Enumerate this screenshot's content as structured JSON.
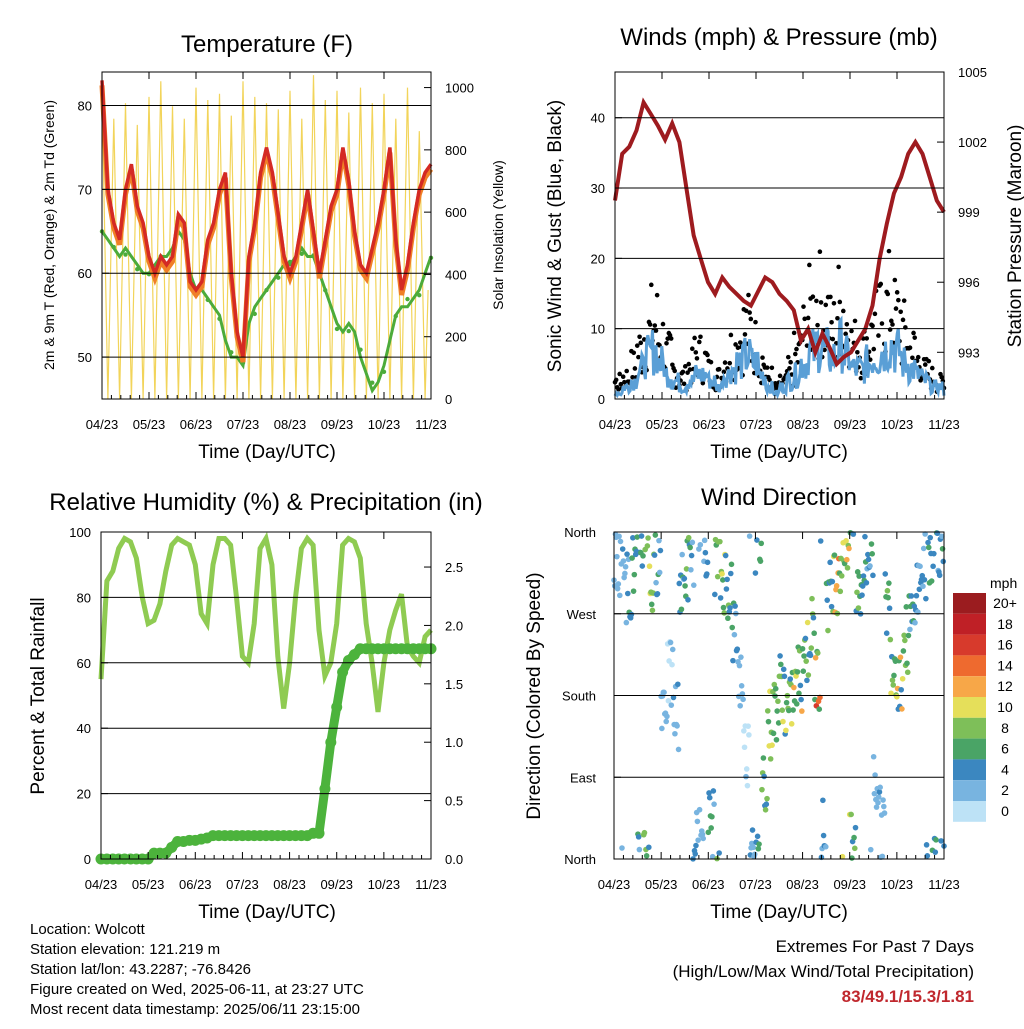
{
  "x_ticks": [
    "04/23",
    "05/23",
    "06/23",
    "07/23",
    "08/23",
    "09/23",
    "10/23",
    "11/23"
  ],
  "x_label": "Time (Day/UTC)",
  "colors": {
    "temp_red": "#d42a24",
    "temp_orange": "#f07f27",
    "dewpoint_green": "#4cab3a",
    "solar_yellow": "#f2d45a",
    "wind_black": "#000000",
    "wind_blue": "#5a9fd6",
    "pressure_maroon": "#9e1b1f",
    "rh_green": "#8fcb52",
    "rain_green": "#4cb33c",
    "extremes_red": "#c0282e"
  },
  "chart_data": [
    {
      "type": "line",
      "title": "Temperature (F)",
      "ylabel": "2m & 9m T (Red, Orange) & 2m Td (Green)",
      "y2label": "Solar Insolation (Yellow)",
      "ylim": [
        45,
        84
      ],
      "y2lim": [
        0,
        1050
      ],
      "y_ticks": [
        "50",
        "60",
        "70",
        "80"
      ],
      "y2_ticks": [
        "0",
        "200",
        "400",
        "600",
        "800",
        "1000"
      ],
      "grid": true,
      "series": [
        {
          "key": "t2m",
          "values": [
            83,
            70,
            66,
            64,
            70,
            73,
            68,
            66,
            62,
            60,
            62,
            61,
            62,
            67,
            66,
            59,
            58,
            59,
            64,
            66,
            70,
            72,
            60,
            53,
            50,
            62,
            66,
            72,
            75,
            72,
            67,
            62,
            60,
            62,
            66,
            70,
            65,
            60,
            64,
            68,
            70,
            75,
            71,
            65,
            61,
            60,
            63,
            66,
            70,
            75,
            64,
            58,
            61,
            66,
            70,
            72,
            73
          ]
        },
        {
          "key": "td2m",
          "values": [
            65,
            64,
            63,
            62,
            63,
            62,
            61,
            60,
            60,
            61,
            62,
            62,
            63,
            65,
            64,
            60,
            58,
            58,
            57,
            56,
            55,
            52,
            50,
            50,
            49,
            54,
            56,
            57,
            58,
            59,
            60,
            61,
            61,
            62,
            63,
            62,
            62,
            60,
            58,
            56,
            54,
            53,
            54,
            53,
            50,
            48,
            46,
            47,
            49,
            52,
            55,
            56,
            56,
            57,
            58,
            60,
            62
          ]
        },
        {
          "key": "solar",
          "values": [
            1000,
            0,
            900,
            0,
            950,
            0,
            880,
            0,
            970,
            0,
            1020,
            0,
            940,
            0,
            900,
            0,
            1000,
            0,
            960,
            0,
            980,
            0,
            910,
            0,
            1020,
            0,
            970,
            0,
            950,
            0,
            930,
            0,
            990,
            0,
            900,
            0,
            1040,
            0,
            960,
            0,
            990,
            0,
            920,
            0,
            1000,
            0,
            950,
            0,
            980,
            0,
            900,
            0,
            1000,
            0,
            860,
            0,
            700
          ]
        }
      ]
    },
    {
      "type": "line",
      "title": "Winds (mph) & Pressure (mb)",
      "ylabel": "Sonic Wind & Gust (Blue, Black)",
      "y2label": "Station Pressure (Maroon)",
      "ylim": [
        0,
        46.5
      ],
      "y2lim": [
        991.0,
        1005.0
      ],
      "y_ticks": [
        "0",
        "10",
        "20",
        "30",
        "40"
      ],
      "y2_ticks": [
        "993",
        "996",
        "999",
        "1002",
        "1005"
      ],
      "grid": true,
      "series": [
        {
          "key": "pressure",
          "values": [
            999.5,
            1001.5,
            1001.8,
            1002.5,
            1003.7,
            1003.2,
            1002.7,
            1002.1,
            1002.8,
            1002.0,
            1000.0,
            998.0,
            997.0,
            996.0,
            995.5,
            996.2,
            995.8,
            995.5,
            995.2,
            995.0,
            995.6,
            996.2,
            996.0,
            995.5,
            995.2,
            994.8,
            993.5,
            994.0,
            993.0,
            993.8,
            993.2,
            992.5,
            992.8,
            993.0,
            993.5,
            994.0,
            995.0,
            997.0,
            998.5,
            999.8,
            1000.5,
            1001.5,
            1002.0,
            1001.5,
            1000.5,
            999.5,
            999.0
          ]
        },
        {
          "key": "gust",
          "values": [
            3,
            4,
            6,
            9,
            12,
            14,
            11,
            8,
            5,
            4,
            6,
            8,
            7,
            5,
            4,
            7,
            9,
            11,
            13,
            10,
            7,
            4,
            2,
            3,
            5,
            8,
            12,
            16,
            18,
            15,
            13,
            17,
            14,
            10,
            9,
            11,
            14,
            16,
            18,
            15,
            12,
            9,
            7,
            5,
            4,
            3,
            2
          ]
        },
        {
          "key": "wind",
          "values": [
            1,
            2,
            3,
            5,
            7,
            8,
            6,
            4,
            3,
            2,
            3,
            4,
            4,
            3,
            2,
            4,
            5,
            6,
            7,
            6,
            4,
            2,
            1,
            2,
            3,
            4,
            6,
            8,
            9,
            8,
            7,
            9,
            7,
            5,
            5,
            6,
            7,
            8,
            9,
            8,
            6,
            5,
            4,
            3,
            2,
            2,
            1
          ]
        }
      ]
    },
    {
      "type": "line",
      "title": "Relative Humidity (%) & Precipitation (in)",
      "ylabel": "Percent & Total Rainfall",
      "ylim": [
        0,
        100
      ],
      "y2lim": [
        0,
        2.8
      ],
      "y_ticks": [
        "0",
        "20",
        "40",
        "60",
        "80",
        "100"
      ],
      "y2_ticks": [
        "0.0",
        "0.5",
        "1.0",
        "1.5",
        "2.0",
        "2.5"
      ],
      "grid": true,
      "series": [
        {
          "key": "rh",
          "values": [
            55,
            85,
            88,
            95,
            98,
            97,
            92,
            80,
            72,
            73,
            78,
            88,
            96,
            98,
            97,
            96,
            90,
            75,
            72,
            90,
            98,
            98,
            96,
            80,
            62,
            60,
            72,
            95,
            98,
            90,
            62,
            46,
            60,
            80,
            95,
            98,
            96,
            70,
            56,
            60,
            72,
            96,
            98,
            97,
            92,
            72,
            60,
            45,
            60,
            70,
            76,
            81,
            65,
            62,
            60,
            68,
            70
          ]
        },
        {
          "key": "rain",
          "values": [
            0,
            0,
            0,
            0,
            0,
            0,
            0,
            0,
            0,
            0.05,
            0.05,
            0.05,
            0.1,
            0.15,
            0.15,
            0.16,
            0.16,
            0.17,
            0.18,
            0.2,
            0.2,
            0.2,
            0.2,
            0.2,
            0.2,
            0.2,
            0.2,
            0.2,
            0.2,
            0.2,
            0.2,
            0.2,
            0.2,
            0.2,
            0.2,
            0.2,
            0.22,
            0.22,
            0.6,
            1.0,
            1.3,
            1.6,
            1.7,
            1.75,
            1.8,
            1.8,
            1.8,
            1.8,
            1.8,
            1.8,
            1.8,
            1.8,
            1.8,
            1.8,
            1.8,
            1.8,
            1.8
          ]
        }
      ]
    },
    {
      "type": "scatter",
      "title": "Wind Direction",
      "ylabel": "Direction (Colored By Speed)",
      "y_ticks": [
        "North",
        "East",
        "South",
        "West",
        "North"
      ],
      "legend_title": "mph",
      "legend_labels": [
        "20+",
        "18",
        "16",
        "14",
        "12",
        "10",
        "8",
        "6",
        "4",
        "2",
        "0"
      ],
      "legend_colors": [
        "#9b1c1f",
        "#bf2026",
        "#d73a2c",
        "#ee6a2f",
        "#f7a748",
        "#e5df5a",
        "#7ebf59",
        "#4aa466",
        "#3b87c0",
        "#78b4e0",
        "#bde2f6"
      ],
      "legend_position": "right",
      "series": [
        {
          "key": "direction",
          "values": [
            330,
            340,
            300,
            320,
            350,
            10,
            300,
            330,
            180,
            200,
            160,
            300,
            320,
            340,
            20,
            350,
            40,
            330,
            310,
            300,
            250,
            200,
            120,
            30,
            350,
            90,
            150,
            170,
            190,
            160,
            180,
            200,
            230,
            250,
            200,
            30,
            290,
            310,
            330,
            350,
            10,
            300,
            320,
            340,
            90,
            40,
            280,
            220,
            200,
            240,
            260,
            300,
            320,
            340,
            0,
            350,
            20
          ]
        },
        {
          "key": "speed",
          "values": [
            2,
            3,
            4,
            6,
            5,
            7,
            8,
            4,
            2,
            1,
            3,
            5,
            6,
            4,
            2,
            3,
            5,
            7,
            8,
            6,
            4,
            2,
            1,
            3,
            5,
            7,
            9,
            6,
            8,
            7,
            10,
            9,
            8,
            6,
            12,
            4,
            6,
            9,
            11,
            10,
            8,
            6,
            5,
            4,
            2,
            3,
            6,
            8,
            9,
            7,
            5,
            4,
            3,
            6,
            5,
            4,
            3
          ]
        }
      ]
    }
  ],
  "meta_lines": [
    "Location: Wolcott",
    "Station elevation: 121.219 m",
    "Station lat/lon: 43.2287; -76.8426",
    "Figure created on Wed, 2025-06-11, at 23:27 UTC",
    "Most recent data timestamp: 2025/06/11 23:15:00"
  ],
  "extremes": {
    "title": "Extremes For Past 7 Days",
    "subtitle": "(High/Low/Max Wind/Total Precipitation)",
    "values": "83/49.1/15.3/1.81"
  }
}
